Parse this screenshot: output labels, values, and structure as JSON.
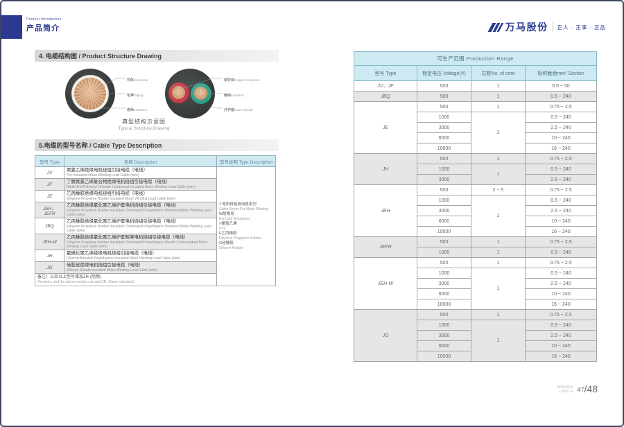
{
  "header": {
    "eyebrow": "Product Introduction",
    "title": "产品简介"
  },
  "brand": {
    "name": "万马股份",
    "tagline": "正人 · 正事 · 正品"
  },
  "footer": {
    "label_top": "WANMA",
    "label_bottom": "CABLE",
    "page": "47",
    "total": "/48"
  },
  "section_structure": {
    "title": "4. 电缆结构图 / Product Structure Drawing",
    "caption_cn": "典型结构示意图",
    "caption_en": "Typical Structure Drawing",
    "single_core_labels": [
      {
        "cn": "导体",
        "en": "Conductor"
      },
      {
        "cn": "包带",
        "en": "Taping"
      },
      {
        "cn": "绝缘",
        "en": "Insulation"
      }
    ],
    "two_core_labels": [
      {
        "cn": "铜导体",
        "en": "Copper Conductor"
      },
      {
        "cn": "绝缘",
        "en": "Insulation"
      },
      {
        "cn": "外护套",
        "en": "Outer Sheath"
      }
    ]
  },
  "section_types": {
    "title": "5.电缆的型号名称 / Cable Type Description",
    "headers": [
      "型号 Type",
      "名称 Description",
      "型号说明 Type Description"
    ],
    "rows": [
      {
        "type": "JV",
        "cn": "聚氯乙烯绝缘电机绕组引接电缆（电线）",
        "en": "Pvc Insulated Motor Winding Lead Cable (wire)"
      },
      {
        "type": "JF",
        "cn": "丁腈聚氯乙烯复合物绝缘电机绕组引接电缆（电线）",
        "en": "Nitrile And Polyvinyl Chloride Compound Insulated Motor Winding Lead Cable (wire)"
      },
      {
        "type": "JE",
        "cn": "乙丙橡胶绝缘电机绕组引接电缆（电线）",
        "en": "Ethylene Propylene Rubber Insulated Motor Winding Lead Cable (wire)"
      },
      {
        "type": "JEH、JEFR",
        "cn": "乙丙橡胶绝缘氯化聚乙烯护套电机绕组引接电缆（电线）",
        "en": "Ethylene Propylene Rubber Insulated Chlorinated Polyethylene Sheathed Motor Winding Lead Cable (wire)"
      },
      {
        "type": "JBQ",
        "cn": "乙丙橡胶绝缘氯化聚乙烯护套电机绕组引接电缆（电线）",
        "en": "Ethylene Propylene Rubber Insulated Chlorinated Polyethylene Sheathed Motor Winding Lead Cable (wire)"
      },
      {
        "type": "JEH-W",
        "cn": "乙丙橡胶绝缘氯化聚乙烯护套耐寒电机绕组引接电缆（电线）",
        "en": "Ethylene Propylene Rubber Insulated Chlorinated Polyethylene Sheath Cold-resistant Motor Winding Lead Cable (wire)"
      },
      {
        "type": "JH",
        "cn": "氯磺化聚乙烯绝缘电机绕组引接电缆（电线）",
        "en": "Chlorosulfonated Polyethylene Insulated Motor Winding Lead Cable (wire)"
      },
      {
        "type": "JG",
        "cn": "硅胶皮绝缘电机绕组引接电缆（电线）",
        "en": "Silicone Sheath Insulated Motor Winding Lead Cable (wire)"
      }
    ],
    "type_description": [
      {
        "cn": "J 电机绕组用电缆系列",
        "en": "Cable Series For Motor Winding"
      },
      {
        "cn": "W耐寒用",
        "en": "For Cold Resistance"
      },
      {
        "cn": "V聚氯乙烯",
        "en": "PVC"
      },
      {
        "cn": "E乙丙橡胶",
        "en": "Ethylene Propylene Rubber"
      },
      {
        "cn": "G硅橡胶",
        "en": "Silicone Rubber"
      }
    ],
    "footnote_cn": "备注：以及以上型号增加ZR-(阻燃)",
    "footnote_en": "Remarks, and the above models can add ZR- (flame retardant)"
  },
  "production_range": {
    "title": "可生产范围 Production Range",
    "headers": [
      "型号 Type",
      "额定电压 Voltage(V)",
      "芯数No. of core",
      "标称截面mm² Section"
    ],
    "groups": [
      {
        "type": "JV、JF",
        "shade": false,
        "rows": [
          {
            "voltage": "500",
            "core": "1",
            "core_rowspan": 1,
            "section": "0.5 ~ 50"
          }
        ]
      },
      {
        "type": "JBQ",
        "shade": true,
        "rows": [
          {
            "voltage": "500",
            "core": "1",
            "core_rowspan": 1,
            "section": "0.5 ~ 240"
          }
        ]
      },
      {
        "type": "JE",
        "shade": false,
        "rows": [
          {
            "voltage": "500",
            "core": "1",
            "core_rowspan": 1,
            "section": "0.75 ~ 2.5"
          },
          {
            "voltage": "1000",
            "core": "1",
            "core_rowspan": 4,
            "section": "0.5 ~ 240"
          },
          {
            "voltage": "3000",
            "section": "2.5 ~ 240"
          },
          {
            "voltage": "6000",
            "section": "10 ~ 240"
          },
          {
            "voltage": "10000",
            "section": "16 ~ 240"
          }
        ]
      },
      {
        "type": "JH",
        "shade": true,
        "rows": [
          {
            "voltage": "500",
            "core": "1",
            "core_rowspan": 1,
            "section": "0.75 ~ 2.5"
          },
          {
            "voltage": "1000",
            "core": "1",
            "core_rowspan": 2,
            "section": "0.5 ~ 240"
          },
          {
            "voltage": "3000",
            "section": "2.5 ~ 240"
          }
        ]
      },
      {
        "type": "JEH",
        "shade": false,
        "rows": [
          {
            "voltage": "500",
            "core": "2 ~ 5",
            "core_rowspan": 1,
            "section": "0.75 ~ 2.5"
          },
          {
            "voltage": "1000",
            "core": "1",
            "core_rowspan": 4,
            "section": "0.5 ~ 240"
          },
          {
            "voltage": "3000",
            "section": "2.5 ~ 240"
          },
          {
            "voltage": "6000",
            "section": "10 ~ 240"
          },
          {
            "voltage": "10000",
            "section": "16 ~ 240"
          }
        ]
      },
      {
        "type": "JEFR",
        "shade": true,
        "rows": [
          {
            "voltage": "500",
            "core": "1",
            "core_rowspan": 1,
            "section": "0.75 ~ 2.5"
          },
          {
            "voltage": "1000",
            "core": "1",
            "core_rowspan": 1,
            "section": "0.5 ~ 240"
          }
        ]
      },
      {
        "type": "JEH-W",
        "shade": false,
        "rows": [
          {
            "voltage": "500",
            "core": "1",
            "core_rowspan": 1,
            "section": "0.75 ~ 2.5"
          },
          {
            "voltage": "1000",
            "core": "1",
            "core_rowspan": 4,
            "section": "0.5 ~ 240"
          },
          {
            "voltage": "3000",
            "section": "2.5 ~ 240"
          },
          {
            "voltage": "6000",
            "section": "10 ~ 240"
          },
          {
            "voltage": "10000",
            "section": "16 ~ 240"
          }
        ]
      },
      {
        "type": "JG",
        "shade": true,
        "rows": [
          {
            "voltage": "500",
            "core": "1",
            "core_rowspan": 1,
            "section": "0.75 ~ 2.5"
          },
          {
            "voltage": "1000",
            "core": "1",
            "core_rowspan": 4,
            "section": "0.5 ~ 240"
          },
          {
            "voltage": "3000",
            "section": "2.5 ~ 240"
          },
          {
            "voltage": "6000",
            "section": "10 ~ 240"
          },
          {
            "voltage": "10000",
            "section": "16 ~ 240"
          }
        ]
      }
    ]
  },
  "colors": {
    "brand_navy": "#2b3990",
    "table_header_bg": "#cde9f1",
    "stripe_gray": "#e6e6e6",
    "copper": "#d9996b",
    "core_red": "#c2394a",
    "core_green": "#2f9c86",
    "sheath_dark": "#3a3f3e"
  }
}
